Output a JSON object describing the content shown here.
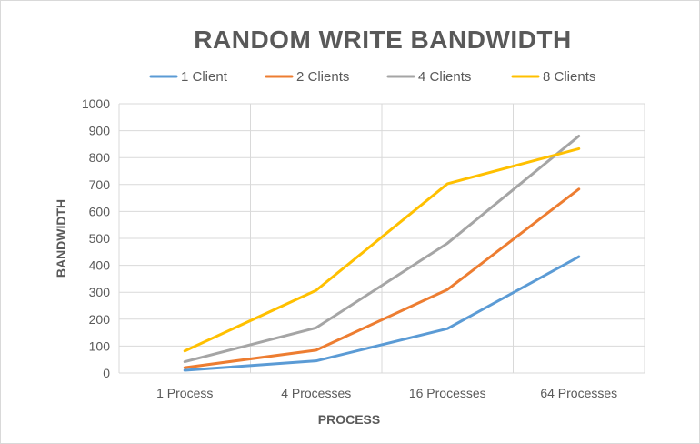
{
  "chart_data": {
    "type": "line",
    "title": "RANDOM WRITE BANDWIDTH",
    "xlabel": "PROCESS",
    "ylabel": "BANDWIDTH",
    "categories": [
      "1 Process",
      "4 Processes",
      "16 Processes",
      "64 Processes"
    ],
    "ylim": [
      0,
      1000
    ],
    "yticks": [
      0,
      100,
      200,
      300,
      400,
      500,
      600,
      700,
      800,
      900,
      1000
    ],
    "grid": true,
    "legend_position": "top",
    "series": [
      {
        "name": "1 Client",
        "color": "#5b9bd5",
        "values": [
          10,
          45,
          165,
          432
        ]
      },
      {
        "name": "2 Clients",
        "color": "#ed7d31",
        "values": [
          20,
          85,
          310,
          683
        ]
      },
      {
        "name": "4 Clients",
        "color": "#a5a5a5",
        "values": [
          42,
          168,
          482,
          880
        ]
      },
      {
        "name": "8 Clients",
        "color": "#ffc000",
        "values": [
          82,
          307,
          703,
          833
        ]
      }
    ]
  }
}
